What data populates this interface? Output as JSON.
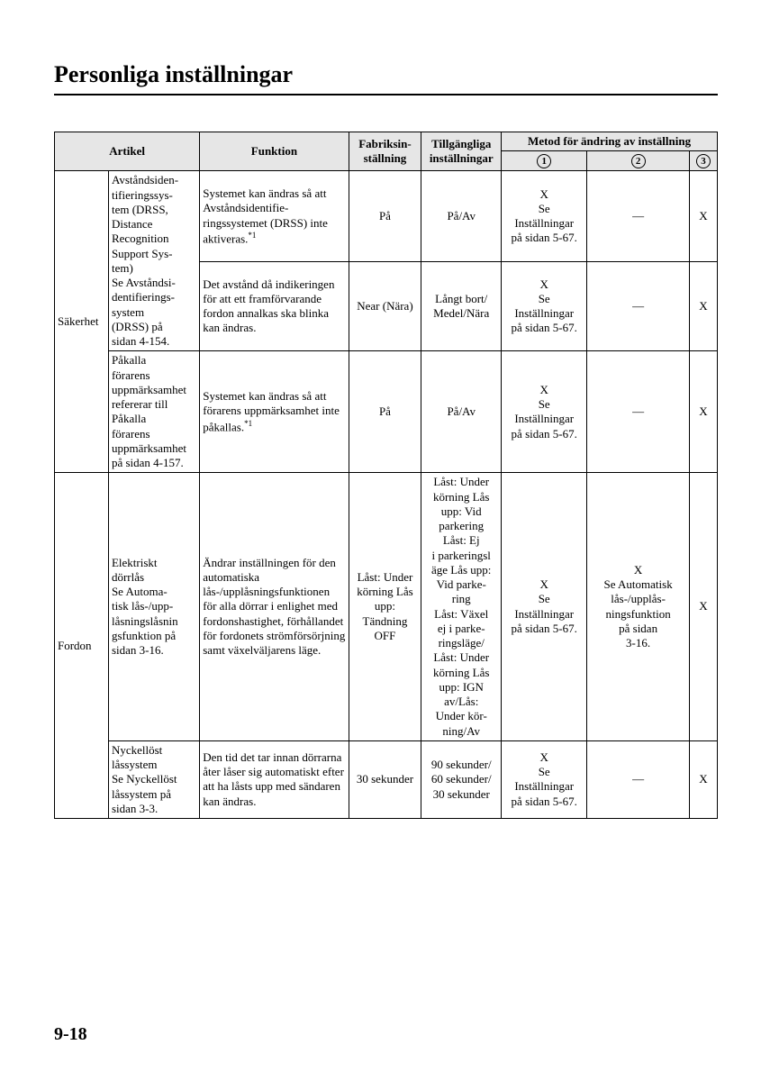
{
  "title": "Personliga inställningar",
  "page_number": "9-18",
  "headers": {
    "artikel": "Artikel",
    "funktion": "Funktion",
    "fabrik": "Fabriksin-\nställning",
    "tillg": "Tillgängliga\ninställningar",
    "metod": "Metod för ändring av inställning",
    "m1": "1",
    "m2": "2",
    "m3": "3"
  },
  "groups": [
    {
      "category": "Säkerhet",
      "rows": [
        {
          "artikel": "Avståndsiden-\ntifieringssys-\ntem (DRSS,\nDistance\nRecognition\nSupport Sys-\ntem)\nSe Avståndsi-\ndentifierings-\nsystem\n(DRSS) på\nsidan 4-154.",
          "artikel_rowspan": 2,
          "funktion": "Systemet kan ändras så att Avståndsidentifie-\nringssystemet (DRSS) inte aktiveras.",
          "funktion_sup": "*1",
          "fabrik": "På",
          "tillg": "På/Av",
          "m1": "X\nSe\nInställningar\npå sidan 5-67.",
          "m2": "—",
          "m3": "X"
        },
        {
          "funktion": "Det avstånd då indikeringen för att ett framförvarande fordon annalkas ska blinka kan ändras.",
          "fabrik": "Near (Nära)",
          "tillg": "Långt bort/\nMedel/Nära",
          "m1": "X\nSe\nInställningar\npå sidan 5-67.",
          "m2": "—",
          "m3": "X"
        },
        {
          "artikel": "Påkalla\nförarens\nuppmärksamhet\nrefererar till\nPåkalla\nförarens\nuppmärksamhet\npå sidan 4-157.",
          "funktion": "Systemet kan ändras så att förarens uppmärksamhet inte påkallas.",
          "funktion_sup": "*1",
          "fabrik": "På",
          "tillg": "På/Av",
          "m1": "X\nSe\nInställningar\npå sidan 5-67.",
          "m2": "—",
          "m3": "X"
        }
      ]
    },
    {
      "category": "Fordon",
      "rows": [
        {
          "artikel": "Elektriskt\ndörrlås\nSe Automa-\ntisk lås-/upp-\nlåsningslåsnin\ngsfunktion på\nsidan 3-16.",
          "funktion": "Ändrar inställningen för den automatiska lås-/upplåsningsfunktionen för alla dörrar i enlighet med fordonshastighet, förhållandet för fordonets strömförsörjning samt växelväljarens läge.",
          "fabrik": "Låst: Under\nkörning Lås\nupp:\nTändning\nOFF",
          "tillg": "Låst: Under\nkörning Lås\nupp: Vid\nparkering\nLåst: Ej\ni parkeringsl\näge Lås upp:\nVid parke-\nring\nLåst: Växel\nej i parke-\nringsläge/\nLåst: Under\nkörning Lås\nupp: IGN\nav/Lås:\nUnder kör-\nning/Av",
          "m1": "X\nSe\nInställningar\npå sidan 5-67.",
          "m2": "X\nSe Automatisk\nlås-/upplås-\nningsfunktion\npå sidan\n3-16.",
          "m3": "X"
        },
        {
          "artikel": "Nyckellöst\nlåssystem\nSe Nyckellöst\nlåssystem på\nsidan 3-3.",
          "funktion": "Den tid det tar innan dörrarna åter låser sig automatiskt efter att ha låsts upp med sändaren kan ändras.",
          "fabrik": "30 sekunder",
          "tillg": "90 sekunder/\n60 sekunder/\n30 sekunder",
          "m1": "X\nSe\nInställningar\npå sidan 5-67.",
          "m2": "—",
          "m3": "X"
        }
      ]
    }
  ]
}
